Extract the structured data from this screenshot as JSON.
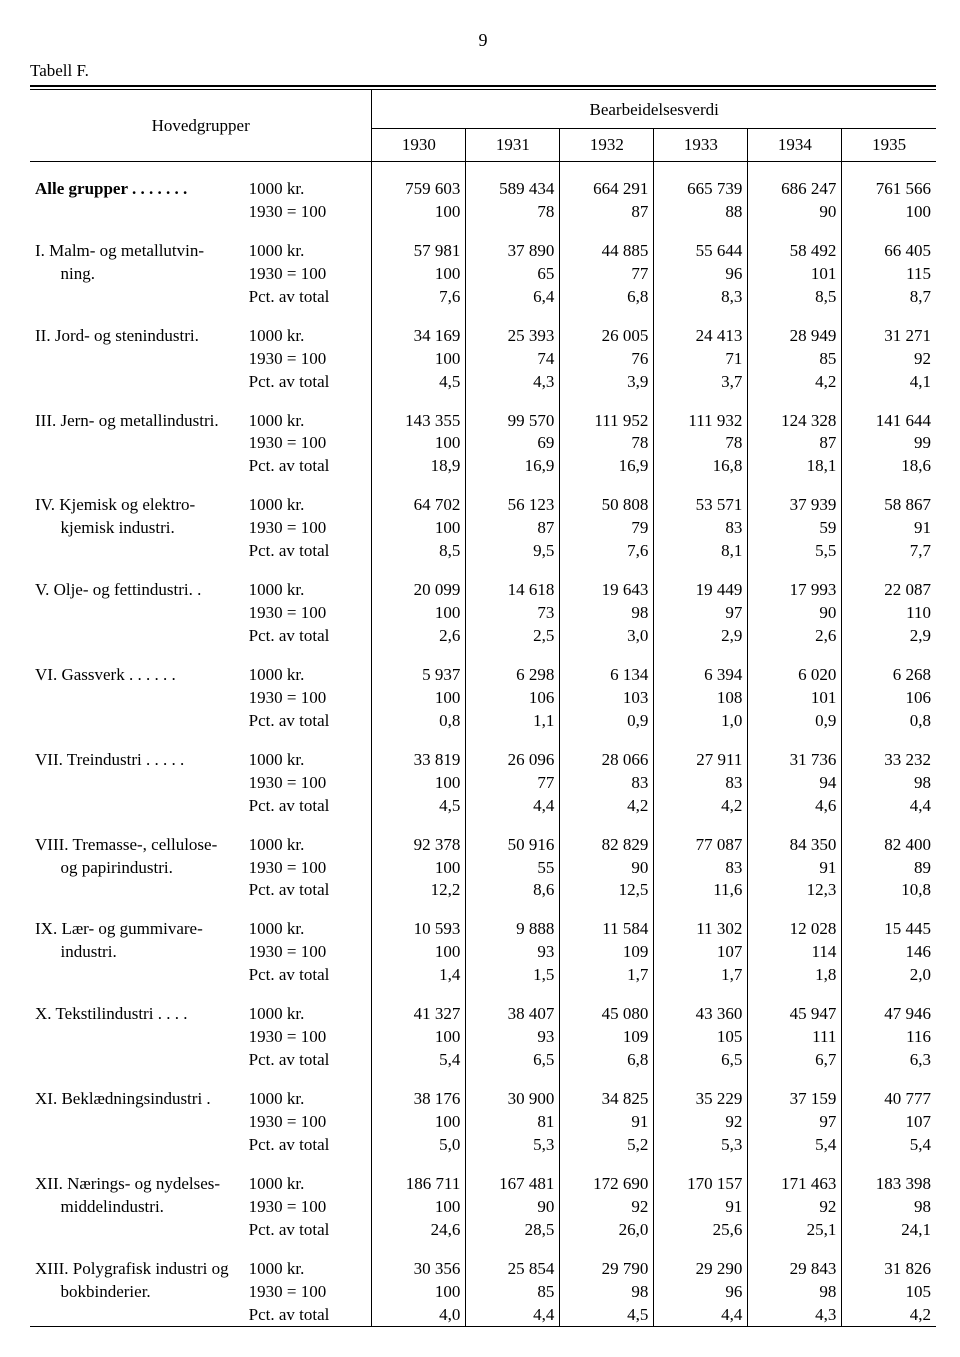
{
  "page_number": "9",
  "table_label": "Tabell F.",
  "header": {
    "group_label": "Hovedgrupper",
    "super_label": "Bearbeidelsesverdi",
    "years": [
      "1930",
      "1931",
      "1932",
      "1933",
      "1934",
      "1935"
    ]
  },
  "measures": [
    "1000 kr.",
    "1930 = 100",
    "Pct. av total"
  ],
  "style": {
    "font_family": "Times New Roman",
    "base_font_size_pt": 12,
    "background": "#ffffff",
    "text_color": "#000000",
    "rule_color": "#000000"
  },
  "groups": [
    {
      "name": "Alle grupper . . . . . . .",
      "bold": true,
      "rows": [
        [
          "759 603",
          "589 434",
          "664 291",
          "665 739",
          "686 247",
          "761 566"
        ],
        [
          "100",
          "78",
          "87",
          "88",
          "90",
          "100"
        ]
      ],
      "measures": [
        "1000 kr.",
        "1930 = 100"
      ]
    },
    {
      "name": "I. Malm- og metallutvin-",
      "name2": "ning.",
      "rows": [
        [
          "57 981",
          "37 890",
          "44 885",
          "55 644",
          "58 492",
          "66 405"
        ],
        [
          "100",
          "65",
          "77",
          "96",
          "101",
          "115"
        ],
        [
          "7,6",
          "6,4",
          "6,8",
          "8,3",
          "8,5",
          "8,7"
        ]
      ]
    },
    {
      "name": "II. Jord- og stenindustri.",
      "rows": [
        [
          "34 169",
          "25 393",
          "26 005",
          "24 413",
          "28 949",
          "31 271"
        ],
        [
          "100",
          "74",
          "76",
          "71",
          "85",
          "92"
        ],
        [
          "4,5",
          "4,3",
          "3,9",
          "3,7",
          "4,2",
          "4,1"
        ]
      ]
    },
    {
      "name": "III. Jern- og metallindustri.",
      "rows": [
        [
          "143 355",
          "99 570",
          "111 952",
          "111 932",
          "124 328",
          "141 644"
        ],
        [
          "100",
          "69",
          "78",
          "78",
          "87",
          "99"
        ],
        [
          "18,9",
          "16,9",
          "16,9",
          "16,8",
          "18,1",
          "18,6"
        ]
      ]
    },
    {
      "name": "IV. Kjemisk og elektro-",
      "name2": "kjemisk industri.",
      "rows": [
        [
          "64 702",
          "56 123",
          "50 808",
          "53 571",
          "37 939",
          "58 867"
        ],
        [
          "100",
          "87",
          "79",
          "83",
          "59",
          "91"
        ],
        [
          "8,5",
          "9,5",
          "7,6",
          "8,1",
          "5,5",
          "7,7"
        ]
      ]
    },
    {
      "name": "V. Olje- og fettindustri. .",
      "rows": [
        [
          "20 099",
          "14 618",
          "19 643",
          "19 449",
          "17 993",
          "22 087"
        ],
        [
          "100",
          "73",
          "98",
          "97",
          "90",
          "110"
        ],
        [
          "2,6",
          "2,5",
          "3,0",
          "2,9",
          "2,6",
          "2,9"
        ]
      ]
    },
    {
      "name": "VI. Gassverk . . . . . .",
      "rows": [
        [
          "5 937",
          "6 298",
          "6 134",
          "6 394",
          "6 020",
          "6 268"
        ],
        [
          "100",
          "106",
          "103",
          "108",
          "101",
          "106"
        ],
        [
          "0,8",
          "1,1",
          "0,9",
          "1,0",
          "0,9",
          "0,8"
        ]
      ]
    },
    {
      "name": "VII. Treindustri . . . . .",
      "rows": [
        [
          "33 819",
          "26 096",
          "28 066",
          "27 911",
          "31 736",
          "33 232"
        ],
        [
          "100",
          "77",
          "83",
          "83",
          "94",
          "98"
        ],
        [
          "4,5",
          "4,4",
          "4,2",
          "4,2",
          "4,6",
          "4,4"
        ]
      ]
    },
    {
      "name": "VIII. Tremasse-, cellulose-",
      "name2": "og papirindustri.",
      "rows": [
        [
          "92 378",
          "50 916",
          "82 829",
          "77 087",
          "84 350",
          "82 400"
        ],
        [
          "100",
          "55",
          "90",
          "83",
          "91",
          "89"
        ],
        [
          "12,2",
          "8,6",
          "12,5",
          "11,6",
          "12,3",
          "10,8"
        ]
      ]
    },
    {
      "name": "IX. Lær- og gummivare-",
      "name2": "industri.",
      "rows": [
        [
          "10 593",
          "9 888",
          "11 584",
          "11 302",
          "12 028",
          "15 445"
        ],
        [
          "100",
          "93",
          "109",
          "107",
          "114",
          "146"
        ],
        [
          "1,4",
          "1,5",
          "1,7",
          "1,7",
          "1,8",
          "2,0"
        ]
      ]
    },
    {
      "name": "X. Tekstilindustri . . . .",
      "rows": [
        [
          "41 327",
          "38 407",
          "45 080",
          "43 360",
          "45 947",
          "47 946"
        ],
        [
          "100",
          "93",
          "109",
          "105",
          "111",
          "116"
        ],
        [
          "5,4",
          "6,5",
          "6,8",
          "6,5",
          "6,7",
          "6,3"
        ]
      ]
    },
    {
      "name": "XI. Beklædningsindustri .",
      "rows": [
        [
          "38 176",
          "30 900",
          "34 825",
          "35 229",
          "37 159",
          "40 777"
        ],
        [
          "100",
          "81",
          "91",
          "92",
          "97",
          "107"
        ],
        [
          "5,0",
          "5,3",
          "5,2",
          "5,3",
          "5,4",
          "5,4"
        ]
      ]
    },
    {
      "name": "XII. Nærings- og nydelses-",
      "name2": "middelindustri.",
      "rows": [
        [
          "186 711",
          "167 481",
          "172 690",
          "170 157",
          "171 463",
          "183 398"
        ],
        [
          "100",
          "90",
          "92",
          "91",
          "92",
          "98"
        ],
        [
          "24,6",
          "28,5",
          "26,0",
          "25,6",
          "25,1",
          "24,1"
        ]
      ]
    },
    {
      "name": "XIII. Polygrafisk industri og",
      "name2": "bokbinderier.",
      "rows": [
        [
          "30 356",
          "25 854",
          "29 790",
          "29 290",
          "29 843",
          "31 826"
        ],
        [
          "100",
          "85",
          "98",
          "96",
          "98",
          "105"
        ],
        [
          "4,0",
          "4,4",
          "4,5",
          "4,4",
          "4,3",
          "4,2"
        ]
      ]
    }
  ]
}
